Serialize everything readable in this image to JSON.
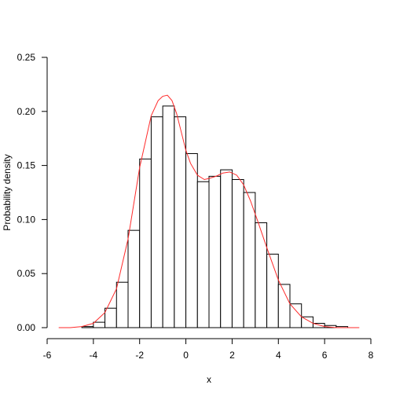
{
  "chart_data": {
    "type": "bar",
    "subtype": "histogram-with-density",
    "title": "",
    "xlabel": "x",
    "ylabel": "Probability density",
    "xlim": [
      -6,
      8
    ],
    "ylim": [
      0,
      0.25
    ],
    "x_ticks": [
      "-6",
      "-4",
      "-2",
      "0",
      "2",
      "4",
      "6",
      "8"
    ],
    "y_ticks": [
      "0.00",
      "0.05",
      "0.10",
      "0.15",
      "0.20",
      "0.25"
    ],
    "grid": false,
    "legend": "none",
    "bin_width": 0.5,
    "bins": [
      {
        "x0": -5.5,
        "x1": -5.0,
        "density": 0.0
      },
      {
        "x0": -5.0,
        "x1": -4.5,
        "density": 0.0
      },
      {
        "x0": -4.5,
        "x1": -4.0,
        "density": 0.001
      },
      {
        "x0": -4.0,
        "x1": -3.5,
        "density": 0.005
      },
      {
        "x0": -3.5,
        "x1": -3.0,
        "density": 0.018
      },
      {
        "x0": -3.0,
        "x1": -2.5,
        "density": 0.042
      },
      {
        "x0": -2.5,
        "x1": -2.0,
        "density": 0.09
      },
      {
        "x0": -2.0,
        "x1": -1.5,
        "density": 0.156
      },
      {
        "x0": -1.5,
        "x1": -1.0,
        "density": 0.195
      },
      {
        "x0": -1.0,
        "x1": -0.5,
        "density": 0.205
      },
      {
        "x0": -0.5,
        "x1": 0.0,
        "density": 0.195
      },
      {
        "x0": 0.0,
        "x1": 0.5,
        "density": 0.161
      },
      {
        "x0": 0.5,
        "x1": 1.0,
        "density": 0.135
      },
      {
        "x0": 1.0,
        "x1": 1.5,
        "density": 0.14
      },
      {
        "x0": 1.5,
        "x1": 2.0,
        "density": 0.146
      },
      {
        "x0": 2.0,
        "x1": 2.5,
        "density": 0.137
      },
      {
        "x0": 2.5,
        "x1": 3.0,
        "density": 0.125
      },
      {
        "x0": 3.0,
        "x1": 3.5,
        "density": 0.097
      },
      {
        "x0": 3.5,
        "x1": 4.0,
        "density": 0.068
      },
      {
        "x0": 4.0,
        "x1": 4.5,
        "density": 0.04
      },
      {
        "x0": 4.5,
        "x1": 5.0,
        "density": 0.022
      },
      {
        "x0": 5.0,
        "x1": 5.5,
        "density": 0.01
      },
      {
        "x0": 5.5,
        "x1": 6.0,
        "density": 0.004
      },
      {
        "x0": 6.0,
        "x1": 6.5,
        "density": 0.002
      },
      {
        "x0": 6.5,
        "x1": 7.0,
        "density": 0.001
      },
      {
        "x0": 7.0,
        "x1": 7.5,
        "density": 0.0
      }
    ],
    "density_curve": {
      "color": "#ff2a2a",
      "x": [
        -5.5,
        -5.0,
        -4.5,
        -4.0,
        -3.5,
        -3.0,
        -2.5,
        -2.0,
        -1.5,
        -1.2,
        -1.0,
        -0.8,
        -0.6,
        -0.4,
        -0.2,
        0.0,
        0.2,
        0.5,
        0.8,
        1.0,
        1.3,
        1.6,
        1.9,
        2.2,
        2.5,
        2.8,
        3.1,
        3.5,
        4.0,
        4.5,
        5.0,
        5.5,
        6.0,
        6.5,
        7.0,
        7.5
      ],
      "y": [
        0.0,
        0.0,
        0.001,
        0.004,
        0.014,
        0.036,
        0.082,
        0.148,
        0.196,
        0.21,
        0.214,
        0.215,
        0.21,
        0.198,
        0.181,
        0.164,
        0.152,
        0.141,
        0.137,
        0.138,
        0.14,
        0.143,
        0.144,
        0.141,
        0.132,
        0.117,
        0.099,
        0.074,
        0.044,
        0.022,
        0.01,
        0.004,
        0.001,
        0.0,
        0.0,
        0.0
      ]
    }
  }
}
